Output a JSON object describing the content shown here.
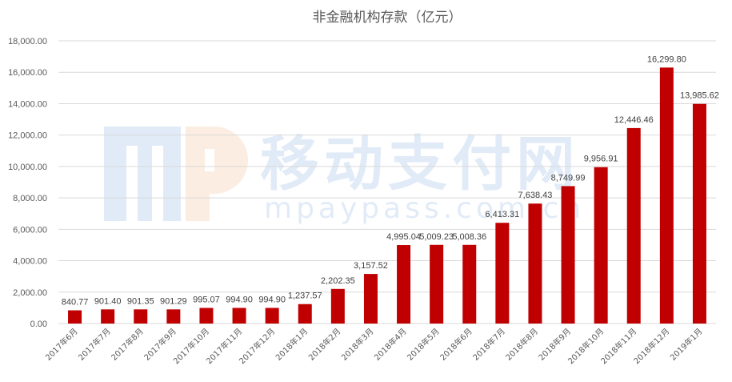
{
  "chart_data": {
    "type": "bar",
    "title": "非金融机构存款（亿元）",
    "xlabel": "",
    "ylabel": "",
    "ylim": [
      0,
      18000
    ],
    "ytick_step": 2000,
    "y_ticks": [
      "0.00",
      "2,000.00",
      "4,000.00",
      "6,000.00",
      "8,000.00",
      "10,000.00",
      "12,000.00",
      "14,000.00",
      "16,000.00",
      "18,000.00"
    ],
    "grid": true,
    "legend": "none",
    "bar_color": "#c00000",
    "categories": [
      "2017年6月",
      "2017年7月",
      "2017年8月",
      "2017年9月",
      "2017年10月",
      "2017年11月",
      "2017年12月",
      "2018年1月",
      "2018年2月",
      "2018年3月",
      "2018年4月",
      "2018年5月",
      "2018年6月",
      "2018年7月",
      "2018年8月",
      "2018年9月",
      "2018年10月",
      "2018年11月",
      "2018年12月",
      "2019年1月"
    ],
    "values": [
      840.77,
      901.4,
      901.35,
      901.29,
      995.07,
      994.9,
      994.9,
      1237.57,
      2202.35,
      3157.52,
      4995.04,
      5009.23,
      5008.36,
      6413.31,
      7638.43,
      8749.99,
      9956.91,
      12446.46,
      16299.8,
      13985.62
    ],
    "data_labels": [
      "840.77",
      "901.40",
      "901.35",
      "901.29",
      "995.07",
      "994.90",
      "994.90",
      "1,237.57",
      "2,202.35",
      "3,157.52",
      "4,995.04",
      "5,009.23",
      "5,008.36",
      "6,413.31",
      "7,638.43",
      "8,749.99",
      "9,956.91",
      "12,446.46",
      "16,299.80",
      "13,985.62"
    ]
  },
  "watermark": {
    "logo_text": "mp",
    "name": "移动支付网",
    "url": "mpaypass.com.cn"
  }
}
